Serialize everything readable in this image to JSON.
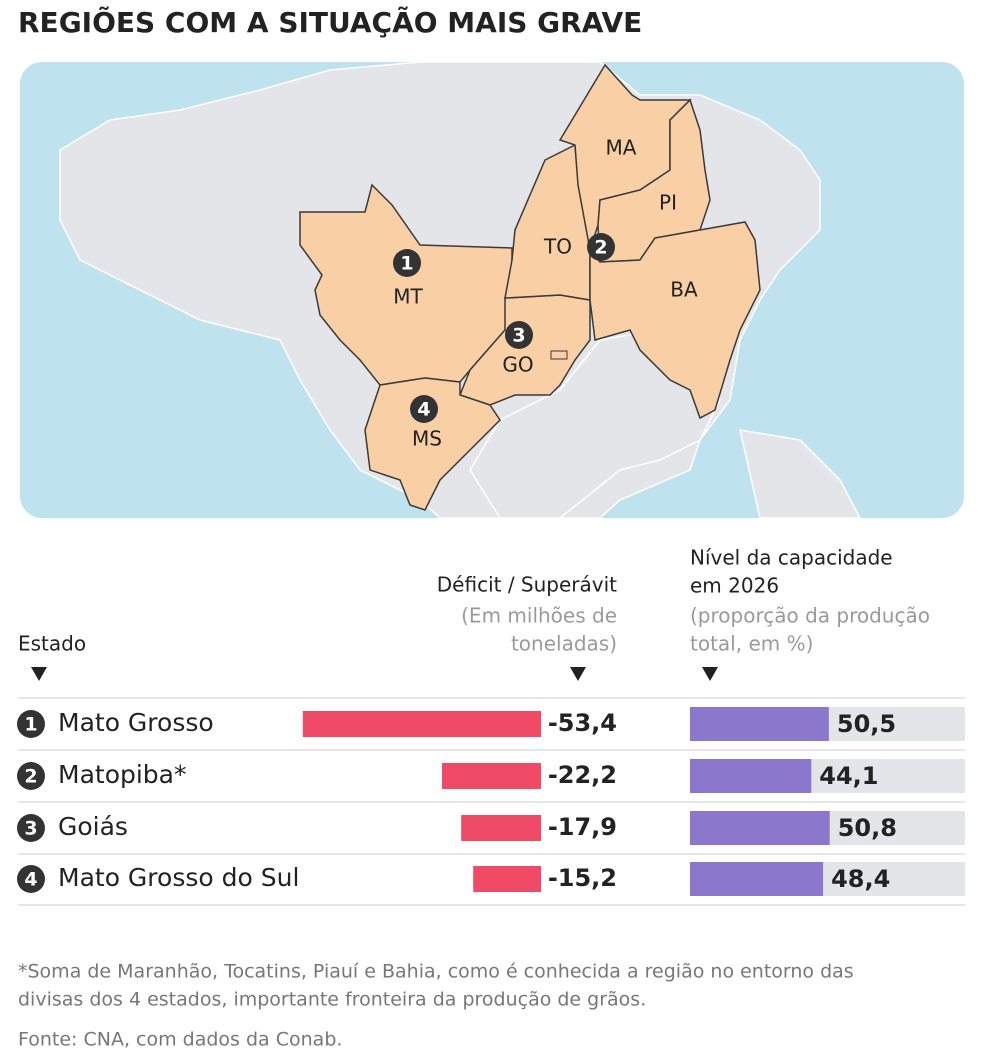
{
  "title": "REGIÕES COM A SITUAÇÃO MAIS GRAVE",
  "map": {
    "states": [
      "MT",
      "TO",
      "MA",
      "PI",
      "BA",
      "GO",
      "MS"
    ],
    "markers": [
      "1",
      "2",
      "3",
      "4"
    ]
  },
  "table": {
    "headers": {
      "state": "Estado",
      "deficit": [
        "Déficit / Superávit",
        "(Em milhões de",
        "toneladas)"
      ],
      "capacity": [
        "Nível da capacidade",
        "em 2026",
        "(proporção da produção",
        "total, em %)"
      ]
    },
    "deficit_color": "#ef4b67",
    "capacity_color": "#8b78cc",
    "rows": [
      {
        "rank": "1",
        "name": "Mato Grosso",
        "deficit": {
          "value": -53.4,
          "label": "-53,4"
        },
        "capacity": {
          "value": 50.5,
          "label": "50,5"
        }
      },
      {
        "rank": "2",
        "name": "Matopiba*",
        "deficit": {
          "value": -22.2,
          "label": "-22,2"
        },
        "capacity": {
          "value": 44.1,
          "label": "44,1"
        }
      },
      {
        "rank": "3",
        "name": "Goiás",
        "deficit": {
          "value": -17.9,
          "label": "-17,9"
        },
        "capacity": {
          "value": 50.8,
          "label": "50,8"
        }
      },
      {
        "rank": "4",
        "name": "Mato Grosso do Sul",
        "deficit": {
          "value": -15.2,
          "label": "-15,2"
        },
        "capacity": {
          "value": 48.4,
          "label": "48,4"
        }
      }
    ]
  },
  "footnote": [
    "*Soma de Maranhão, Tocatins, Piauí e Bahia, como é conhecida a região no entorno das",
    "divisas dos 4 estados, importante fronteira da produção de grãos."
  ],
  "source": "Fonte: CNA, com dados da Conab."
}
